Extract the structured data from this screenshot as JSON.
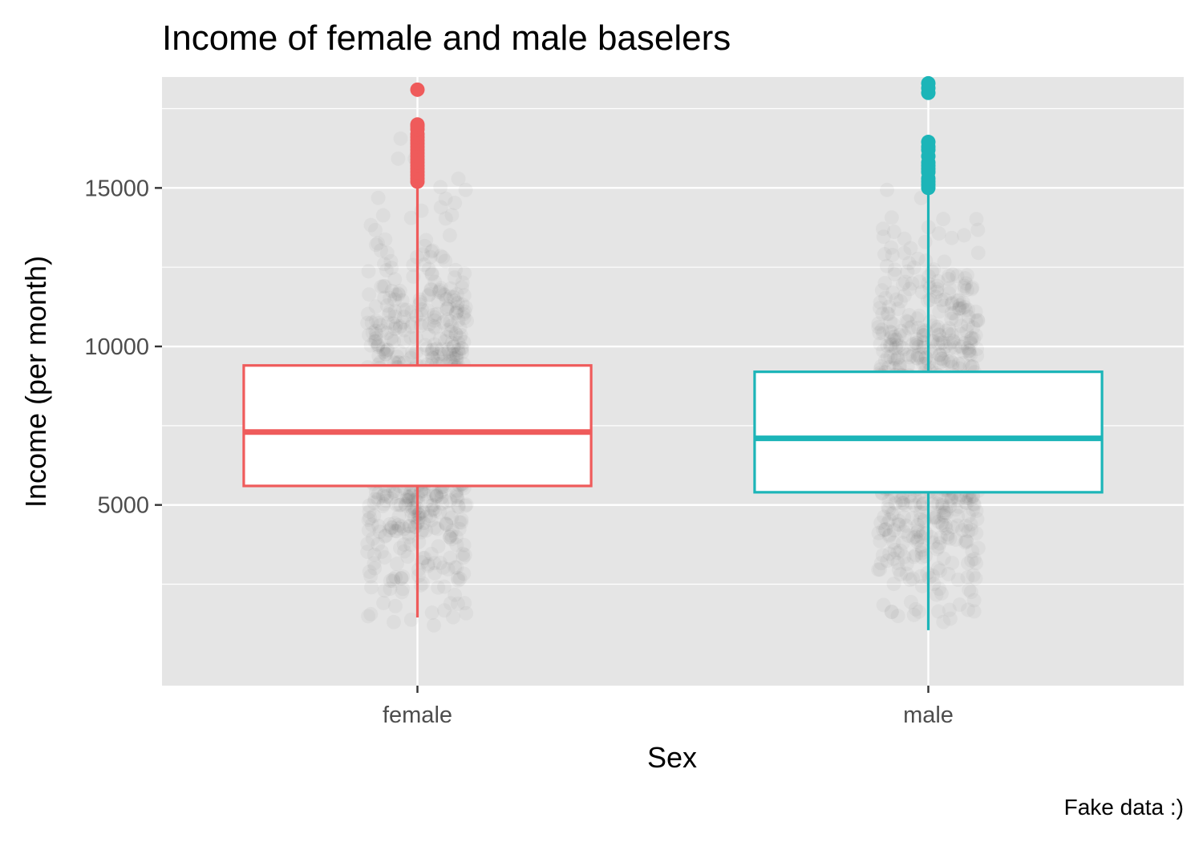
{
  "chart_data": {
    "type": "boxplot",
    "title": "Income of female and male baselers",
    "xlabel": "Sex",
    "ylabel": "Income (per month)",
    "caption": "Fake data :)",
    "categories": [
      "female",
      "male"
    ],
    "ylim": [
      -700,
      18500
    ],
    "y_ticks": [
      5000,
      10000,
      15000
    ],
    "y_minor_ticks": [
      2500,
      7500,
      12500,
      17500
    ],
    "grid": true,
    "background_color": "#e5e5e5",
    "grid_color": "#ffffff",
    "series": [
      {
        "category": "female",
        "color": "#ef5b5b",
        "q1": 5600,
        "median": 7300,
        "q3": 9400,
        "whisker_low": 1450,
        "whisker_high": 15150,
        "outliers": [
          15200,
          15300,
          15400,
          15500,
          15600,
          15700,
          15800,
          15900,
          16000,
          16100,
          16200,
          16300,
          16400,
          16500,
          16600,
          16700,
          16850,
          16950,
          17000,
          18100
        ],
        "jitter_range": [
          1200,
          16700
        ]
      },
      {
        "category": "male",
        "color": "#1cb5b8",
        "q1": 5400,
        "median": 7100,
        "q3": 9200,
        "whisker_low": 1050,
        "whisker_high": 14900,
        "outliers": [
          15000,
          15100,
          15200,
          15300,
          15500,
          15600,
          15700,
          15800,
          16000,
          16200,
          16300,
          16450,
          18000,
          18150,
          18300
        ],
        "jitter_range": [
          1200,
          16400
        ]
      }
    ]
  }
}
